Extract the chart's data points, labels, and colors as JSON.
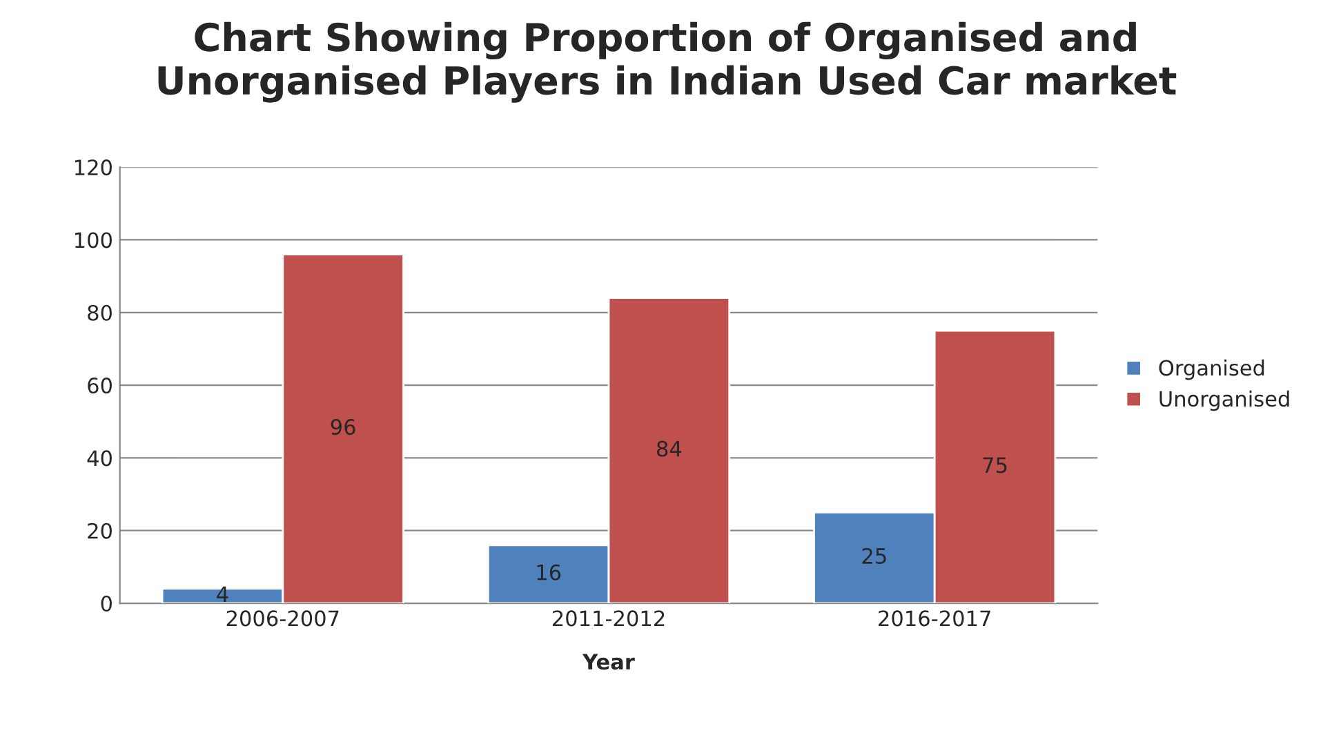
{
  "chart_data": {
    "type": "bar",
    "title": "Chart Showing Proportion of Organised and\nUnorganised Players in Indian Used Car market",
    "xlabel": "Year",
    "categories": [
      "2006-2007",
      "2011-2012",
      "2016-2017"
    ],
    "series": [
      {
        "name": "Organised",
        "color": "#4f81bd",
        "values": [
          4,
          16,
          25
        ]
      },
      {
        "name": "Unorganised",
        "color": "#c0504d",
        "values": [
          96,
          84,
          75
        ]
      }
    ],
    "ylim": [
      0,
      120
    ],
    "yticks": [
      0,
      20,
      40,
      60,
      80,
      100,
      120
    ],
    "grid": "y",
    "legend": "right",
    "data_labels": true
  }
}
